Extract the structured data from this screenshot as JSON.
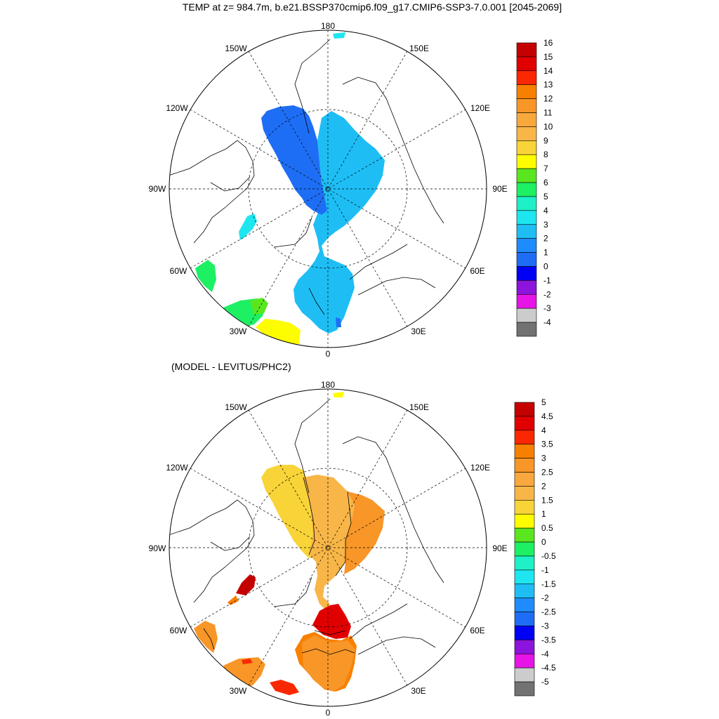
{
  "titles": {
    "main": "TEMP at z= 984.7m, b.e21.BSSP370cmip6.f09_g17.CMIP6-SSP3-7.0.001 [2045-2069]",
    "diff": "(MODEL - LEVITUS/PHC2)"
  },
  "map_labels": {
    "lon_180": "180",
    "lon_150w": "150W",
    "lon_150e": "150E",
    "lon_120w": "120W",
    "lon_120e": "120E",
    "lon_90w": "90W",
    "lon_90e": "90E",
    "lon_60w": "60W",
    "lon_60e": "60E",
    "lon_30w": "30W",
    "lon_30e": "30E",
    "lon_0": "0"
  },
  "colorbar_top": {
    "labels": [
      "16",
      "15",
      "14",
      "13",
      "12",
      "11",
      "10",
      "9",
      "8",
      "7",
      "6",
      "5",
      "4",
      "3",
      "2",
      "1",
      "0",
      "-1",
      "-2",
      "-3",
      "-4"
    ],
    "colors": [
      "#c40000",
      "#e10000",
      "#fa2800",
      "#f88000",
      "#f89628",
      "#f8a83c",
      "#f8b648",
      "#f8d438",
      "#fdfd00",
      "#5ae61e",
      "#1ef064",
      "#1ef0c8",
      "#1ee6f0",
      "#1ebef5",
      "#1e8cff",
      "#1e6ef5",
      "#0000f5",
      "#8c14dc",
      "#e614e6",
      "#cccccc",
      "#727272"
    ]
  },
  "colorbar_bottom": {
    "labels": [
      "5",
      "4.5",
      "4",
      "3.5",
      "3",
      "2.5",
      "2",
      "1.5",
      "1",
      "0.5",
      "0",
      "-0.5",
      "-1",
      "-1.5",
      "-2",
      "-2.5",
      "-3",
      "-3.5",
      "-4",
      "-4.5",
      "-5"
    ],
    "colors": [
      "#c40000",
      "#e10000",
      "#fa2800",
      "#f88000",
      "#f89628",
      "#f8a83c",
      "#f8b648",
      "#f8d438",
      "#fdfd00",
      "#5ae61e",
      "#1ef064",
      "#1ef0c8",
      "#1ee6f0",
      "#1ebef5",
      "#1e8cff",
      "#1e6ef5",
      "#0000f5",
      "#8c14dc",
      "#e614e6",
      "#cccccc",
      "#727272"
    ]
  }
}
